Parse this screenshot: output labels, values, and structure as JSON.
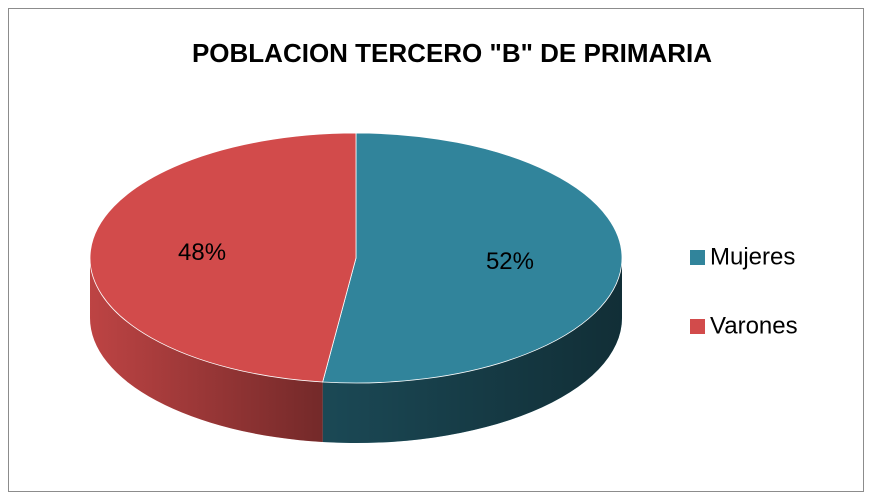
{
  "chart_data": {
    "type": "pie3d",
    "title": "POBLACION TERCERO \"B\" DE PRIMARIA",
    "categories": [
      "Mujeres",
      "Varones"
    ],
    "values": [
      52,
      48
    ],
    "value_labels": [
      "52%",
      "48%"
    ],
    "colors": [
      "#31849B",
      "#D24B4B"
    ],
    "legend": "right"
  }
}
